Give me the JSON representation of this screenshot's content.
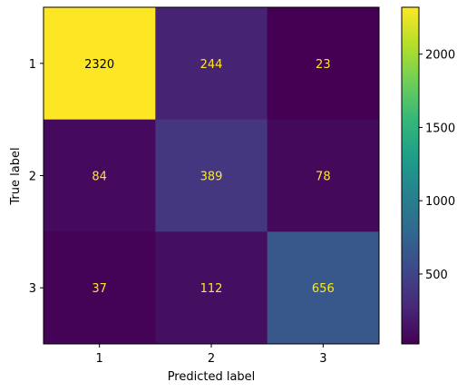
{
  "chart_data": {
    "type": "heatmap",
    "xlabel": "Predicted label",
    "ylabel": "True label",
    "x_categories": [
      "1",
      "2",
      "3"
    ],
    "y_categories": [
      "1",
      "2",
      "3"
    ],
    "matrix": [
      [
        2320,
        244,
        23
      ],
      [
        84,
        389,
        78
      ],
      [
        37,
        112,
        656
      ]
    ],
    "colormap": "viridis",
    "colorbar": {
      "range": [
        23,
        2320
      ],
      "ticks": [
        500,
        1000,
        1500,
        2000
      ]
    },
    "text_colors": {
      "on_dark": "#fde725",
      "on_light": "#000000"
    },
    "grid": false,
    "legend": "colorbar-right"
  }
}
